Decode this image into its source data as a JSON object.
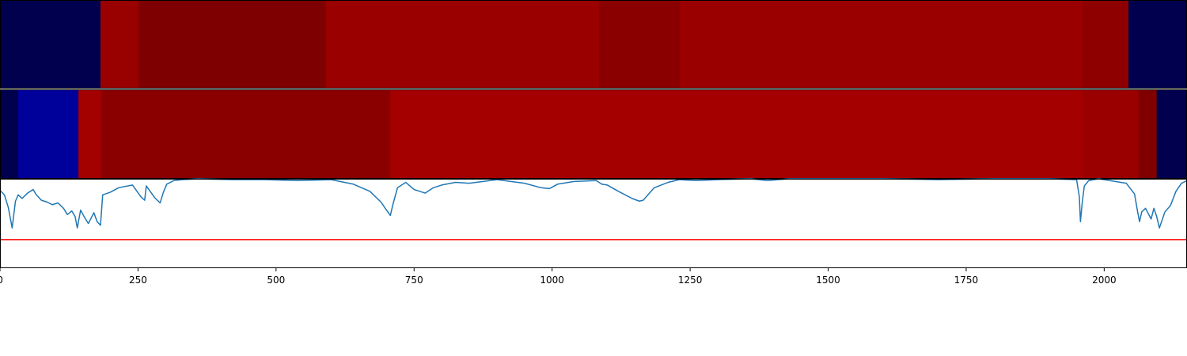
{
  "chart_data": [
    {
      "type": "heatmap",
      "xlim": [
        0,
        2150
      ],
      "colormap": "seismic",
      "segments": [
        {
          "start": 0,
          "end": 182,
          "color": "#00004e"
        },
        {
          "start": 182,
          "end": 251,
          "color": "#990000"
        },
        {
          "start": 251,
          "end": 590,
          "color": "#7e0000"
        },
        {
          "start": 590,
          "end": 1085,
          "color": "#9a0000"
        },
        {
          "start": 1085,
          "end": 1231,
          "color": "#8a0000"
        },
        {
          "start": 1231,
          "end": 1960,
          "color": "#9b0000"
        },
        {
          "start": 1960,
          "end": 2044,
          "color": "#8e0000"
        },
        {
          "start": 2044,
          "end": 2150,
          "color": "#00004e"
        }
      ]
    },
    {
      "type": "heatmap",
      "xlim": [
        0,
        2150
      ],
      "colormap": "seismic",
      "segments": [
        {
          "start": 0,
          "end": 33,
          "color": "#00004e"
        },
        {
          "start": 33,
          "end": 142,
          "color": "#00009b"
        },
        {
          "start": 142,
          "end": 184,
          "color": "#a30000"
        },
        {
          "start": 184,
          "end": 707,
          "color": "#8a0000"
        },
        {
          "start": 707,
          "end": 1960,
          "color": "#a50000"
        },
        {
          "start": 1960,
          "end": 2062,
          "color": "#9b0000"
        },
        {
          "start": 2062,
          "end": 2095,
          "color": "#800000"
        },
        {
          "start": 2095,
          "end": 2150,
          "color": "#00004e"
        }
      ]
    },
    {
      "type": "line",
      "xlim": [
        0,
        2150
      ],
      "ylim": [
        -1,
        0
      ],
      "series": [
        {
          "color": "#1f77b4",
          "x": [
            0,
            8,
            15,
            22,
            28,
            33,
            40,
            50,
            60,
            66,
            75,
            85,
            95,
            105,
            115,
            122,
            130,
            136,
            140,
            146,
            152,
            160,
            170,
            176,
            182,
            186,
            200,
            215,
            240,
            255,
            262,
            265,
            280,
            290,
            296,
            302,
            315,
            330,
            360,
            420,
            480,
            540,
            600,
            640,
            670,
            690,
            700,
            707,
            712,
            720,
            735,
            750,
            770,
            785,
            800,
            825,
            850,
            900,
            950,
            980,
            995,
            1010,
            1040,
            1080,
            1090,
            1100,
            1120,
            1145,
            1158,
            1165,
            1185,
            1210,
            1230,
            1260,
            1300,
            1360,
            1390,
            1410,
            1430,
            1500,
            1600,
            1700,
            1800,
            1900,
            1950,
            1955,
            1957,
            1960,
            1964,
            1972,
            1990,
            2040,
            2055,
            2060,
            2064,
            2068,
            2075,
            2085,
            2090,
            2095,
            2100,
            2110,
            2120,
            2130,
            2140,
            2150
          ],
          "y": [
            -0.13,
            -0.18,
            -0.32,
            -0.55,
            -0.25,
            -0.18,
            -0.22,
            -0.16,
            -0.12,
            -0.18,
            -0.24,
            -0.26,
            -0.29,
            -0.27,
            -0.33,
            -0.4,
            -0.36,
            -0.42,
            -0.55,
            -0.35,
            -0.42,
            -0.5,
            -0.38,
            -0.48,
            -0.52,
            -0.18,
            -0.15,
            -0.1,
            -0.07,
            -0.2,
            -0.24,
            -0.08,
            -0.21,
            -0.27,
            -0.15,
            -0.06,
            -0.02,
            -0.01,
            0,
            -0.01,
            -0.01,
            -0.02,
            -0.01,
            -0.06,
            -0.14,
            -0.26,
            -0.35,
            -0.41,
            -0.28,
            -0.1,
            -0.04,
            -0.12,
            -0.16,
            -0.1,
            -0.07,
            -0.04,
            -0.05,
            -0.01,
            -0.05,
            -0.1,
            -0.11,
            -0.06,
            -0.03,
            -0.02,
            -0.06,
            -0.07,
            -0.14,
            -0.22,
            -0.25,
            -0.24,
            -0.1,
            -0.04,
            -0.01,
            -0.02,
            -0.01,
            0,
            -0.02,
            -0.01,
            0,
            0,
            0,
            -0.01,
            0,
            0,
            -0.01,
            -0.2,
            -0.48,
            -0.28,
            -0.08,
            -0.02,
            0,
            -0.05,
            -0.17,
            -0.35,
            -0.48,
            -0.37,
            -0.33,
            -0.45,
            -0.33,
            -0.42,
            -0.55,
            -0.37,
            -0.3,
            -0.14,
            -0.05,
            -0.02
          ]
        },
        {
          "color": "#ff0000",
          "x": [
            0,
            2150
          ],
          "y": [
            -0.68,
            -0.68
          ]
        }
      ]
    }
  ],
  "x_axis": {
    "ticks": [
      0,
      250,
      500,
      750,
      1000,
      1250,
      1500,
      1750,
      2000
    ],
    "tick_labels": [
      "0",
      "250",
      "500",
      "750",
      "1000",
      "1250",
      "1500",
      "1750",
      "2000"
    ]
  }
}
